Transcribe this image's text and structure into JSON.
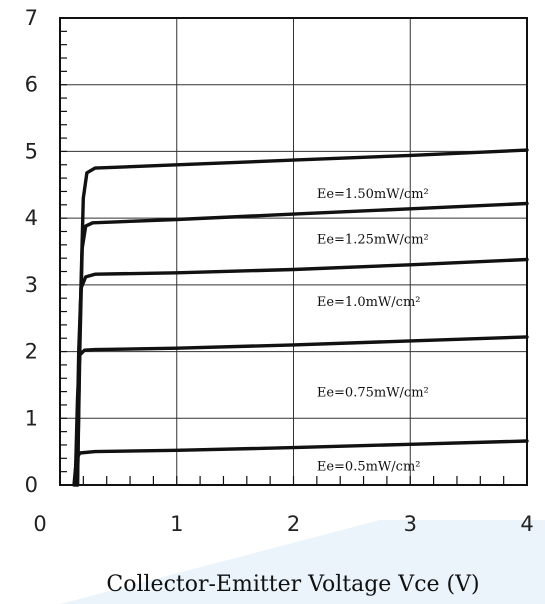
{
  "chart_data": {
    "type": "line",
    "title": "",
    "xlabel": "Collector-Emitter Voltage Vce (V)",
    "ylabel": "",
    "xlim": [
      0,
      4
    ],
    "ylim": [
      0,
      7
    ],
    "xticks": [
      "0",
      "1",
      "2",
      "3",
      "4"
    ],
    "yticks": [
      "0",
      "1",
      "2",
      "3",
      "4",
      "5",
      "6",
      "7"
    ],
    "grid": true,
    "series": [
      {
        "name": "Ee=1.50mW/cm²",
        "points": [
          [
            0.15,
            0
          ],
          [
            0.17,
            2.3
          ],
          [
            0.2,
            4.3
          ],
          [
            0.23,
            4.68
          ],
          [
            0.3,
            4.75
          ],
          [
            1,
            4.8
          ],
          [
            2,
            4.87
          ],
          [
            3,
            4.94
          ],
          [
            4,
            5.02
          ]
        ]
      },
      {
        "name": "Ee=1.25mW/cm²",
        "points": [
          [
            0.15,
            0
          ],
          [
            0.17,
            2.0
          ],
          [
            0.19,
            3.55
          ],
          [
            0.22,
            3.88
          ],
          [
            0.28,
            3.93
          ],
          [
            1,
            3.98
          ],
          [
            2,
            4.06
          ],
          [
            3,
            4.14
          ],
          [
            4,
            4.22
          ]
        ]
      },
      {
        "name": "Ee=1.0mW/cm²",
        "points": [
          [
            0.14,
            0
          ],
          [
            0.16,
            2.0
          ],
          [
            0.18,
            2.95
          ],
          [
            0.22,
            3.12
          ],
          [
            0.3,
            3.16
          ],
          [
            1,
            3.18
          ],
          [
            2,
            3.23
          ],
          [
            3,
            3.3
          ],
          [
            4,
            3.38
          ]
        ]
      },
      {
        "name": "Ee=0.75mW/cm²",
        "points": [
          [
            0.13,
            0
          ],
          [
            0.15,
            1.3
          ],
          [
            0.17,
            1.95
          ],
          [
            0.21,
            2.02
          ],
          [
            0.3,
            2.03
          ],
          [
            1,
            2.05
          ],
          [
            2,
            2.1
          ],
          [
            3,
            2.16
          ],
          [
            4,
            2.22
          ]
        ]
      },
      {
        "name": "Ee=0.5mW/cm²",
        "points": [
          [
            0.12,
            0
          ],
          [
            0.14,
            0.38
          ],
          [
            0.17,
            0.48
          ],
          [
            0.3,
            0.5
          ],
          [
            1,
            0.52
          ],
          [
            2,
            0.56
          ],
          [
            3,
            0.61
          ],
          [
            4,
            0.66
          ]
        ]
      }
    ]
  }
}
